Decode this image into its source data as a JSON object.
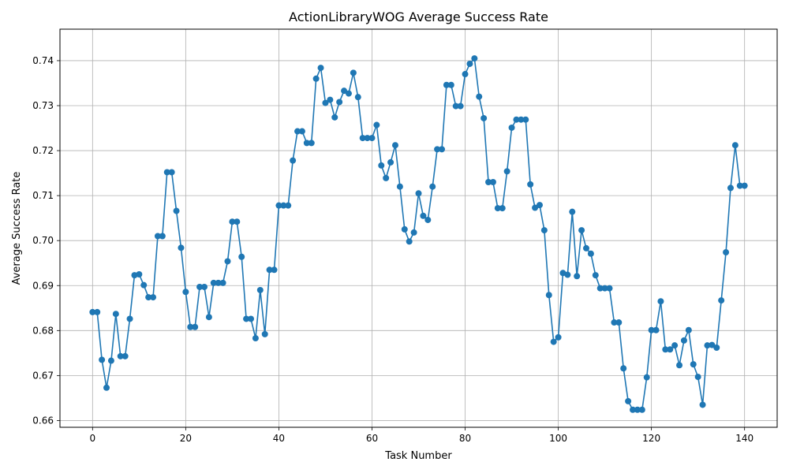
{
  "chart_data": {
    "type": "line",
    "title": "ActionLibraryWOG Average Success Rate",
    "xlabel": "Task Number",
    "ylabel": "Average Success Rate",
    "xlim": [
      -7,
      147
    ],
    "ylim": [
      0.6585,
      0.747
    ],
    "xticks": [
      0,
      20,
      40,
      60,
      80,
      100,
      120,
      140
    ],
    "xtick_labels": [
      "0",
      "20",
      "40",
      "60",
      "80",
      "100",
      "120",
      "140"
    ],
    "yticks": [
      0.66,
      0.67,
      0.68,
      0.69,
      0.7,
      0.71,
      0.72,
      0.73,
      0.74
    ],
    "ytick_labels": [
      "0.66",
      "0.67",
      "0.68",
      "0.69",
      "0.70",
      "0.71",
      "0.72",
      "0.73",
      "0.74"
    ],
    "grid": true,
    "color": "#1f77b4",
    "marker": "circle",
    "series": [
      {
        "values": [
          0.6841,
          0.6841,
          0.6735,
          0.6673,
          0.6733,
          0.6837,
          0.6743,
          0.6743,
          0.6826,
          0.6923,
          0.6925,
          0.6901,
          0.6874,
          0.6874,
          0.701,
          0.701,
          0.7152,
          0.7152,
          0.7066,
          0.6984,
          0.6886,
          0.6808,
          0.6808,
          0.6897,
          0.6897,
          0.683,
          0.6906,
          0.6906,
          0.6906,
          0.6954,
          0.7042,
          0.7042,
          0.6964,
          0.6826,
          0.6826,
          0.6783,
          0.689,
          0.6792,
          0.6935,
          0.6935,
          0.7078,
          0.7078,
          0.7078,
          0.7178,
          0.7243,
          0.7243,
          0.7217,
          0.7217,
          0.736,
          0.7384,
          0.7306,
          0.7313,
          0.7274,
          0.7308,
          0.7333,
          0.7327,
          0.7373,
          0.7319,
          0.7228,
          0.7228,
          0.7228,
          0.7257,
          0.7167,
          0.7139,
          0.7174,
          0.7212,
          0.712,
          0.7025,
          0.6998,
          0.7018,
          0.7105,
          0.7055,
          0.7046,
          0.712,
          0.7203,
          0.7203,
          0.7346,
          0.7346,
          0.7299,
          0.7299,
          0.737,
          0.7393,
          0.7405,
          0.732,
          0.7272,
          0.713,
          0.713,
          0.7072,
          0.7072,
          0.7154,
          0.7251,
          0.7269,
          0.7269,
          0.7269,
          0.7125,
          0.7073,
          0.7079,
          0.7023,
          0.6879,
          0.6775,
          0.6785,
          0.6928,
          0.6924,
          0.7064,
          0.6921,
          0.7023,
          0.6983,
          0.6971,
          0.6923,
          0.6894,
          0.6894,
          0.6894,
          0.6818,
          0.6818,
          0.6716,
          0.6643,
          0.6624,
          0.6624,
          0.6624,
          0.6696,
          0.6801,
          0.6801,
          0.6865,
          0.6758,
          0.6758,
          0.6767,
          0.6723,
          0.6778,
          0.6801,
          0.6725,
          0.6697,
          0.6635,
          0.6767,
          0.6768,
          0.6762,
          0.6867,
          0.6974,
          0.7117,
          0.7212,
          0.7122,
          0.7122
        ]
      }
    ]
  }
}
